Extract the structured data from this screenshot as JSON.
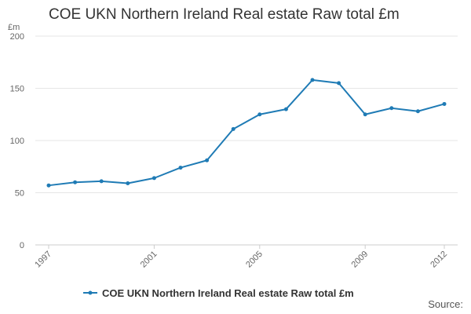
{
  "title": "COE UKN Northern Ireland Real estate Raw total £m",
  "source_label": "Source:",
  "chart_data": {
    "type": "line",
    "title": "COE UKN Northern Ireland Real estate Raw total £m",
    "xlabel": "",
    "ylabel": "£m",
    "x": [
      1997,
      1998,
      1999,
      2000,
      2001,
      2002,
      2003,
      2004,
      2005,
      2006,
      2007,
      2008,
      2009,
      2010,
      2011,
      2012
    ],
    "x_tick_labels": [
      "1997",
      "2001",
      "2005",
      "2009",
      "2012"
    ],
    "y_ticks": [
      0,
      50,
      100,
      150,
      200
    ],
    "ylim": [
      0,
      200
    ],
    "grid": true,
    "legend": "bottom",
    "color": "#1f7bb5",
    "series": [
      {
        "name": "COE UKN Northern Ireland Real estate Raw total £m",
        "values": [
          57,
          60,
          61,
          59,
          64,
          74,
          81,
          111,
          125,
          130,
          158,
          155,
          125,
          131,
          128,
          135
        ]
      }
    ]
  }
}
